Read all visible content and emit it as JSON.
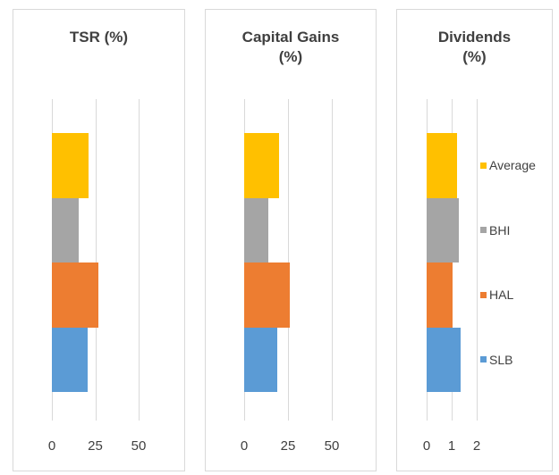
{
  "chart_data": [
    {
      "type": "bar",
      "title": "TSR (%)",
      "categories": [
        "SLB",
        "HAL",
        "BHI",
        "Average"
      ],
      "values": [
        20.5,
        27,
        15.5,
        21
      ],
      "colors": [
        "#5b9bd5",
        "#ed7d31",
        "#a5a5a5",
        "#ffc000"
      ],
      "xlim": [
        0,
        50
      ],
      "xticks": [
        0,
        25,
        50
      ],
      "grid": true
    },
    {
      "type": "bar",
      "title": "Capital Gains (%)",
      "categories": [
        "SLB",
        "HAL",
        "BHI",
        "Average"
      ],
      "values": [
        19,
        26,
        14,
        20
      ],
      "colors": [
        "#5b9bd5",
        "#ed7d31",
        "#a5a5a5",
        "#ffc000"
      ],
      "xlim": [
        0,
        50
      ],
      "xticks": [
        0,
        25,
        50
      ],
      "grid": true
    },
    {
      "type": "bar",
      "title": "Dividends (%)",
      "categories": [
        "SLB",
        "HAL",
        "BHI",
        "Average"
      ],
      "values": [
        1.35,
        1.05,
        1.3,
        1.2
      ],
      "colors": [
        "#5b9bd5",
        "#ed7d31",
        "#a5a5a5",
        "#ffc000"
      ],
      "xlim": [
        0,
        2
      ],
      "xticks": [
        0,
        1,
        2
      ],
      "grid": true,
      "legend": "right"
    }
  ]
}
